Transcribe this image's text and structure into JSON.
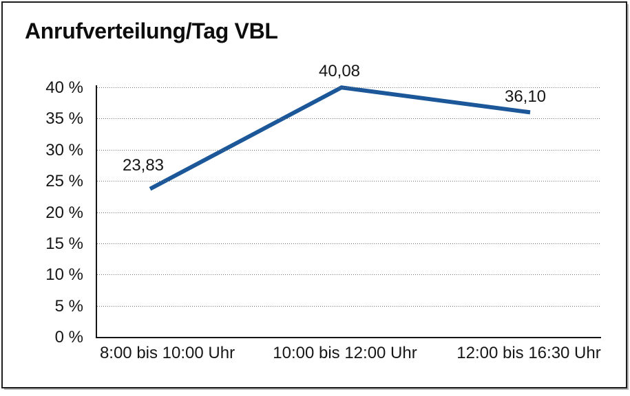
{
  "chart_data": {
    "type": "line",
    "title": "Anrufverteilung/Tag VBL",
    "categories": [
      "8:00 bis 10:00 Uhr",
      "10:00 bis 12:00 Uhr",
      "12:00 bis 16:30 Uhr"
    ],
    "values": [
      23.83,
      40.08,
      36.1
    ],
    "point_labels": [
      "23,83",
      "40,08",
      "36,10"
    ],
    "ytick_labels": [
      "0 %",
      "5 %",
      "10 %",
      "15 %",
      "20 %",
      "25 %",
      "30 %",
      "35 %",
      "40 %"
    ],
    "ytick_step": 5,
    "ylim": [
      0,
      40
    ],
    "xlabel": "",
    "ylabel": "",
    "legend": "none",
    "grid": "horizontal-dotted",
    "line_color": "#1b5799",
    "axis_color": "#141414",
    "text_color": "#161616",
    "background_color": "#ffffff"
  }
}
